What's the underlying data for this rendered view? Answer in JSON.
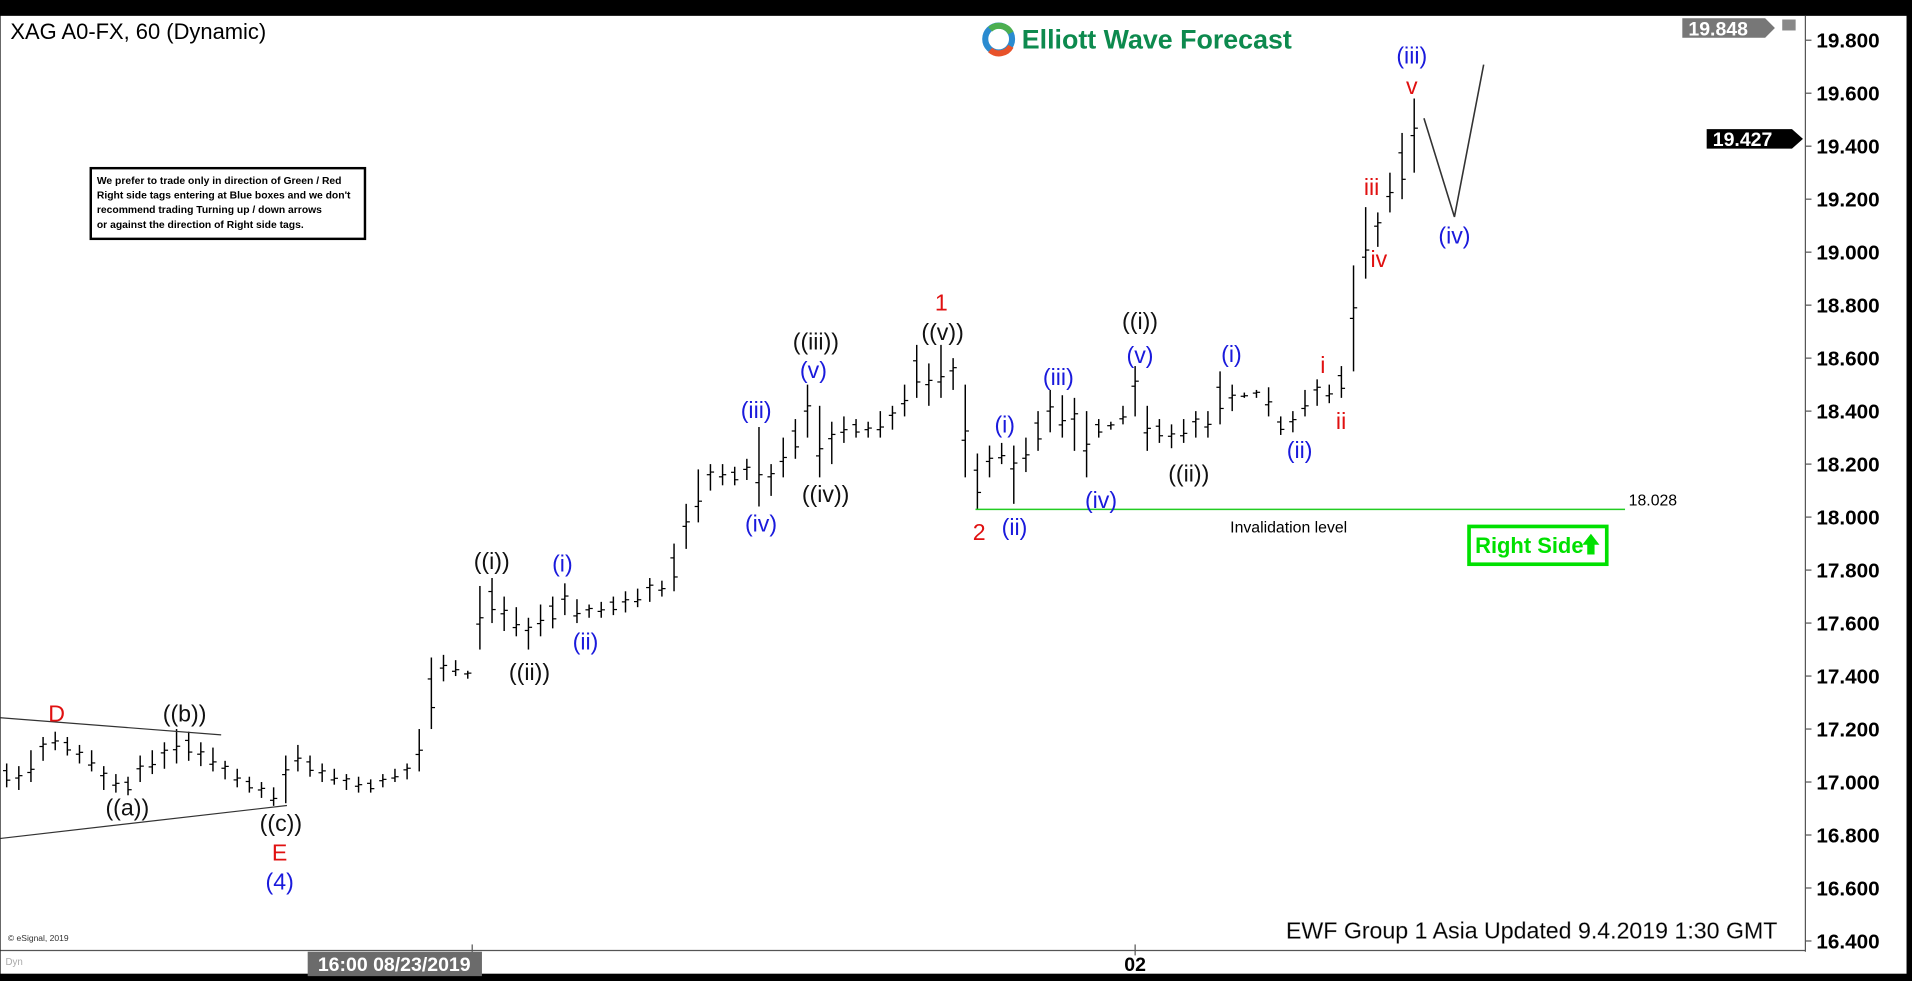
{
  "header": {
    "symbol_title": "XAG A0-FX, 60 (Dynamic)",
    "logo_text": "Elliott Wave Forecast",
    "restore_icon": "window-restore-icon"
  },
  "note": {
    "lines": [
      "We prefer to trade only in direction of Green / Red",
      "Right side tags entering at Blue boxes and we don't",
      "recommend trading Turning up / down arrows",
      "or against the direction of Right side tags."
    ]
  },
  "footer": {
    "updated": "EWF Group 1 Asia  Updated 9.4.2019 1:30 GMT",
    "copyright": "© eSignal, 2019",
    "dyn": "Dyn"
  },
  "invalidation": {
    "value": "18.028",
    "label": "Invalidation level",
    "color": "#22cc22"
  },
  "right_side": {
    "label": "Right Side",
    "icon": "arrow-up-icon",
    "color": "#00e000"
  },
  "price_tags": {
    "high": "19.848",
    "last": "19.427"
  },
  "chart_data": {
    "type": "ohlc-bar",
    "title": "XAG A0-FX, 60 (Dynamic)",
    "ylim": [
      16.4,
      19.85
    ],
    "yticks": [
      "19.800",
      "19.600",
      "19.400",
      "19.200",
      "19.000",
      "18.800",
      "18.600",
      "18.400",
      "18.200",
      "18.000",
      "17.800",
      "17.600",
      "17.400",
      "17.200",
      "17.000",
      "16.800",
      "16.600",
      "16.400"
    ],
    "xticks": [
      "16:00 08/23/2019",
      "02"
    ],
    "bars_high_low": [
      [
        17.07,
        16.98
      ],
      [
        17.06,
        16.97
      ],
      [
        17.12,
        17.0
      ],
      [
        17.17,
        17.08
      ],
      [
        17.19,
        17.12
      ],
      [
        17.17,
        17.1
      ],
      [
        17.14,
        17.07
      ],
      [
        17.12,
        17.04
      ],
      [
        17.06,
        16.97
      ],
      [
        17.03,
        16.96
      ],
      [
        17.02,
        16.95
      ],
      [
        17.1,
        17.0
      ],
      [
        17.12,
        17.03
      ],
      [
        17.15,
        17.05
      ],
      [
        17.2,
        17.07
      ],
      [
        17.19,
        17.08
      ],
      [
        17.15,
        17.06
      ],
      [
        17.13,
        17.04
      ],
      [
        17.08,
        17.01
      ],
      [
        17.05,
        16.98
      ],
      [
        17.02,
        16.96
      ],
      [
        17.0,
        16.94
      ],
      [
        16.98,
        16.91
      ],
      [
        17.1,
        16.92
      ],
      [
        17.14,
        17.04
      ],
      [
        17.1,
        17.02
      ],
      [
        17.07,
        17.0
      ],
      [
        17.05,
        16.99
      ],
      [
        17.03,
        16.97
      ],
      [
        17.02,
        16.96
      ],
      [
        17.01,
        16.96
      ],
      [
        17.03,
        16.98
      ],
      [
        17.05,
        17.0
      ],
      [
        17.07,
        17.01
      ],
      [
        17.2,
        17.04
      ],
      [
        17.47,
        17.2
      ],
      [
        17.48,
        17.38
      ],
      [
        17.46,
        17.4
      ],
      [
        17.42,
        17.39
      ],
      [
        17.74,
        17.5
      ],
      [
        17.77,
        17.6
      ],
      [
        17.7,
        17.57
      ],
      [
        17.66,
        17.55
      ],
      [
        17.62,
        17.5
      ],
      [
        17.67,
        17.55
      ],
      [
        17.7,
        17.58
      ],
      [
        17.75,
        17.63
      ],
      [
        17.69,
        17.6
      ],
      [
        17.67,
        17.62
      ],
      [
        17.68,
        17.62
      ],
      [
        17.7,
        17.63
      ],
      [
        17.72,
        17.64
      ],
      [
        17.73,
        17.66
      ],
      [
        17.77,
        17.68
      ],
      [
        17.76,
        17.7
      ],
      [
        17.9,
        17.72
      ],
      [
        18.05,
        17.88
      ],
      [
        18.18,
        17.98
      ],
      [
        18.2,
        18.1
      ],
      [
        18.2,
        18.12
      ],
      [
        18.19,
        18.12
      ],
      [
        18.22,
        18.14
      ],
      [
        18.34,
        18.04
      ],
      [
        18.2,
        18.08
      ],
      [
        18.3,
        18.15
      ],
      [
        18.37,
        18.22
      ],
      [
        18.5,
        18.3
      ],
      [
        18.42,
        18.15
      ],
      [
        18.36,
        18.2
      ],
      [
        18.38,
        18.28
      ],
      [
        18.37,
        18.3
      ],
      [
        18.36,
        18.3
      ],
      [
        18.4,
        18.3
      ],
      [
        18.42,
        18.33
      ],
      [
        18.5,
        18.38
      ],
      [
        18.65,
        18.45
      ],
      [
        18.58,
        18.42
      ],
      [
        18.65,
        18.45
      ],
      [
        18.6,
        18.48
      ],
      [
        18.5,
        18.15
      ],
      [
        18.24,
        18.03
      ],
      [
        18.27,
        18.15
      ],
      [
        18.28,
        18.2
      ],
      [
        18.27,
        18.05
      ],
      [
        18.3,
        18.17
      ],
      [
        18.4,
        18.25
      ],
      [
        18.48,
        18.32
      ],
      [
        18.46,
        18.3
      ],
      [
        18.45,
        18.25
      ],
      [
        18.4,
        18.15
      ],
      [
        18.37,
        18.3
      ],
      [
        18.36,
        18.33
      ],
      [
        18.42,
        18.35
      ],
      [
        18.57,
        18.38
      ],
      [
        18.42,
        18.25
      ],
      [
        18.37,
        18.28
      ],
      [
        18.35,
        18.26
      ],
      [
        18.37,
        18.28
      ],
      [
        18.4,
        18.3
      ],
      [
        18.4,
        18.3
      ],
      [
        18.55,
        18.35
      ],
      [
        18.5,
        18.4
      ],
      [
        18.47,
        18.45
      ],
      [
        18.48,
        18.45
      ],
      [
        18.49,
        18.38
      ],
      [
        18.38,
        18.31
      ],
      [
        18.4,
        18.32
      ],
      [
        18.48,
        18.38
      ],
      [
        18.52,
        18.42
      ],
      [
        18.5,
        18.43
      ],
      [
        18.57,
        18.45
      ],
      [
        18.95,
        18.55
      ],
      [
        19.17,
        18.9
      ],
      [
        19.15,
        19.02
      ],
      [
        19.3,
        19.15
      ],
      [
        19.45,
        19.2
      ],
      [
        19.58,
        19.3
      ]
    ],
    "wave_labels": [
      {
        "text": "D",
        "color": "red"
      },
      {
        "text": "((b))",
        "color": "black"
      },
      {
        "text": "((a))",
        "color": "black"
      },
      {
        "text": "((c))",
        "color": "black"
      },
      {
        "text": "E",
        "color": "red"
      },
      {
        "text": "(4)",
        "color": "blue"
      },
      {
        "text": "((i))",
        "color": "black"
      },
      {
        "text": "((ii))",
        "color": "black"
      },
      {
        "text": "(i)",
        "color": "blue"
      },
      {
        "text": "(ii)",
        "color": "blue"
      },
      {
        "text": "(iii)",
        "color": "blue"
      },
      {
        "text": "(iv)",
        "color": "blue"
      },
      {
        "text": "((iii))",
        "color": "black"
      },
      {
        "text": "(v)",
        "color": "blue"
      },
      {
        "text": "((iv))",
        "color": "black"
      },
      {
        "text": "1",
        "color": "red"
      },
      {
        "text": "((v))",
        "color": "black"
      },
      {
        "text": "2",
        "color": "red"
      },
      {
        "text": "(i)",
        "color": "blue"
      },
      {
        "text": "(ii)",
        "color": "blue"
      },
      {
        "text": "(iii)",
        "color": "blue"
      },
      {
        "text": "(iv)",
        "color": "blue"
      },
      {
        "text": "((i))",
        "color": "black"
      },
      {
        "text": "(v)",
        "color": "blue"
      },
      {
        "text": "((ii))",
        "color": "black"
      },
      {
        "text": "(i)",
        "color": "blue"
      },
      {
        "text": "(ii)",
        "color": "blue"
      },
      {
        "text": "i",
        "color": "red"
      },
      {
        "text": "ii",
        "color": "red"
      },
      {
        "text": "iii",
        "color": "red"
      },
      {
        "text": "iv",
        "color": "red"
      },
      {
        "text": "(iii)",
        "color": "blue"
      },
      {
        "text": "v",
        "color": "red"
      },
      {
        "text": "(iv)",
        "color": "blue"
      }
    ]
  }
}
